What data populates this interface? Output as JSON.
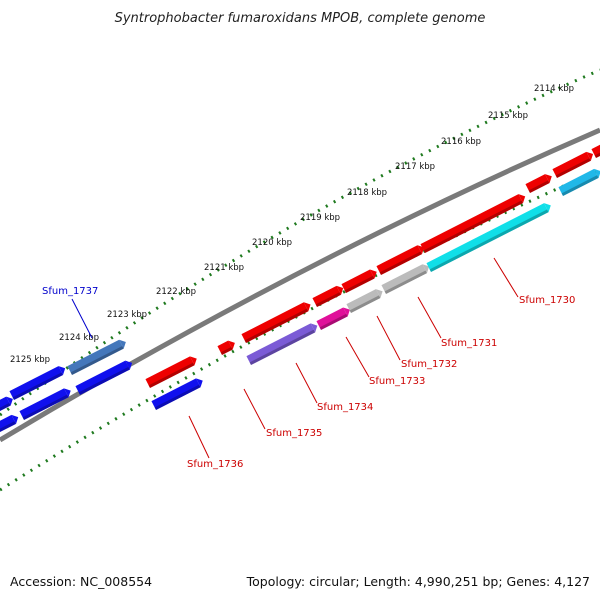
{
  "title": "Syntrophobacter fumaroxidans MPOB, complete genome",
  "accession": "Accession: NC_008554",
  "topology": "Topology: circular; Length: 4,990,251 bp; Genes: 4,127",
  "colors": {
    "backbone": "#7a7a7a",
    "tick_dots": "#1f7a1f",
    "forward_gene": "#ee0000",
    "reverse_gene_highlight": "#1010ee",
    "label_forward": "#cc0000",
    "label_reverse": "#0000cc"
  },
  "ticks": [
    {
      "label": "2114 kbp"
    },
    {
      "label": "2115 kbp"
    },
    {
      "label": "2116 kbp"
    },
    {
      "label": "2117 kbp"
    },
    {
      "label": "2118 kbp"
    },
    {
      "label": "2119 kbp"
    },
    {
      "label": "2120 kbp"
    },
    {
      "label": "2121 kbp"
    },
    {
      "label": "2122 kbp"
    },
    {
      "label": "2123 kbp"
    },
    {
      "label": "2124 kbp"
    },
    {
      "label": "2125 kbp"
    }
  ],
  "gene_labels": [
    {
      "text": "Sfum_1730",
      "color": "#cc0000"
    },
    {
      "text": "Sfum_1731",
      "color": "#cc0000"
    },
    {
      "text": "Sfum_1732",
      "color": "#cc0000"
    },
    {
      "text": "Sfum_1733",
      "color": "#cc0000"
    },
    {
      "text": "Sfum_1734",
      "color": "#cc0000"
    },
    {
      "text": "Sfum_1735",
      "color": "#cc0000"
    },
    {
      "text": "Sfum_1736",
      "color": "#cc0000"
    },
    {
      "text": "Sfum_1737",
      "color": "#0000cc"
    }
  ]
}
